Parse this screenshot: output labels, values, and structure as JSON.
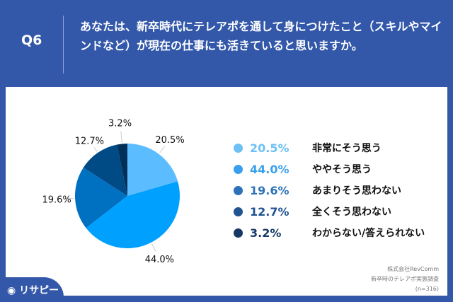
{
  "header": {
    "q": "Q6",
    "title": "あなたは、新卒時代にテレアポを通して身につけたこと（スキルやマインドなど）が現在の仕事にも活きていると思いますか。"
  },
  "chart_data": {
    "type": "pie",
    "start": "top, clockwise",
    "categories": [
      "非常にそう思う",
      "ややそう思う",
      "あまりそう思わない",
      "全くそう思わない",
      "わからない/答えられない"
    ],
    "values": [
      20.5,
      44.0,
      19.6,
      12.7,
      3.2
    ],
    "labels": [
      "20.5%",
      "44.0%",
      "19.6%",
      "12.7%",
      "3.2%"
    ],
    "colors": [
      "#5bbcff",
      "#00a0ff",
      "#0070c0",
      "#004a85",
      "#00305a"
    ],
    "legend_colors": [
      "#6cc0f5",
      "#3aa0ee",
      "#2d72b8",
      "#215390",
      "#173866"
    ],
    "legend": "right"
  },
  "source": {
    "line1": "株式会社RevComm",
    "line2": "新卒時のテレアポ実態調査",
    "line3": "(n=316)"
  },
  "logo": "リサピー"
}
